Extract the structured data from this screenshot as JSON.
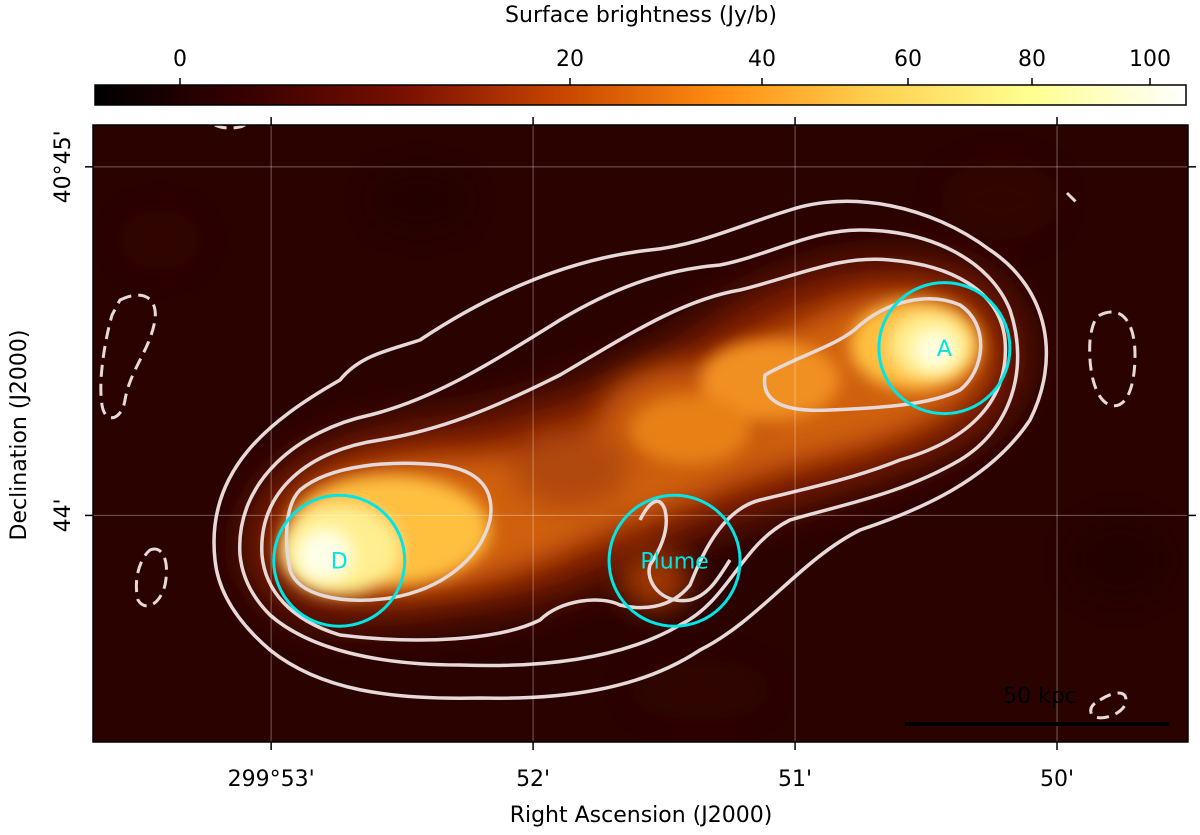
{
  "chart_data": {
    "type": "heatmap",
    "colorbar": {
      "label": "Surface brightness (Jy/b)",
      "ticks": [
        "0",
        "20",
        "40",
        "60",
        "80",
        "100"
      ],
      "tick_values": [
        0,
        20,
        40,
        60,
        80,
        100
      ],
      "range": [
        -8,
        106
      ],
      "colormap": "afmhot",
      "stops": [
        "#000000",
        "#3a0000",
        "#7a1000",
        "#c84600",
        "#ff8c10",
        "#ffd050",
        "#ffff90",
        "#ffffff"
      ]
    },
    "xlabel": "Right Ascension (J2000)",
    "ylabel": "Declination (J2000)",
    "x_ticks": [
      "299°53'",
      "52'",
      "51'",
      "50'"
    ],
    "x_tick_values_arcmin": [
      53,
      52,
      51,
      50
    ],
    "y_ticks": [
      "40°45'",
      "44'"
    ],
    "y_tick_values_arcmin": [
      45,
      44
    ],
    "xlim_arcmin": [
      53.68,
      49.5
    ],
    "ylim_arcmin": [
      45.12,
      43.35
    ],
    "grid": true,
    "regions": [
      {
        "label": "A",
        "ra_arcmin": 50.43,
        "dec_arcmin": 44.48,
        "radius_arcmin": 0.25,
        "color": "#00e5e5"
      },
      {
        "label": "D",
        "ra_arcmin": 52.74,
        "dec_arcmin": 43.87,
        "radius_arcmin": 0.25,
        "color": "#00e5e5"
      },
      {
        "label": "Plume",
        "ra_arcmin": 51.46,
        "dec_arcmin": 43.87,
        "radius_arcmin": 0.25,
        "color": "#00e5e5"
      }
    ],
    "contours": {
      "color": "#e6d9d9",
      "style": "solid and dashed (negative)"
    },
    "scale_bar": {
      "label": "50 kpc",
      "length_arcmin": 1.02
    }
  }
}
